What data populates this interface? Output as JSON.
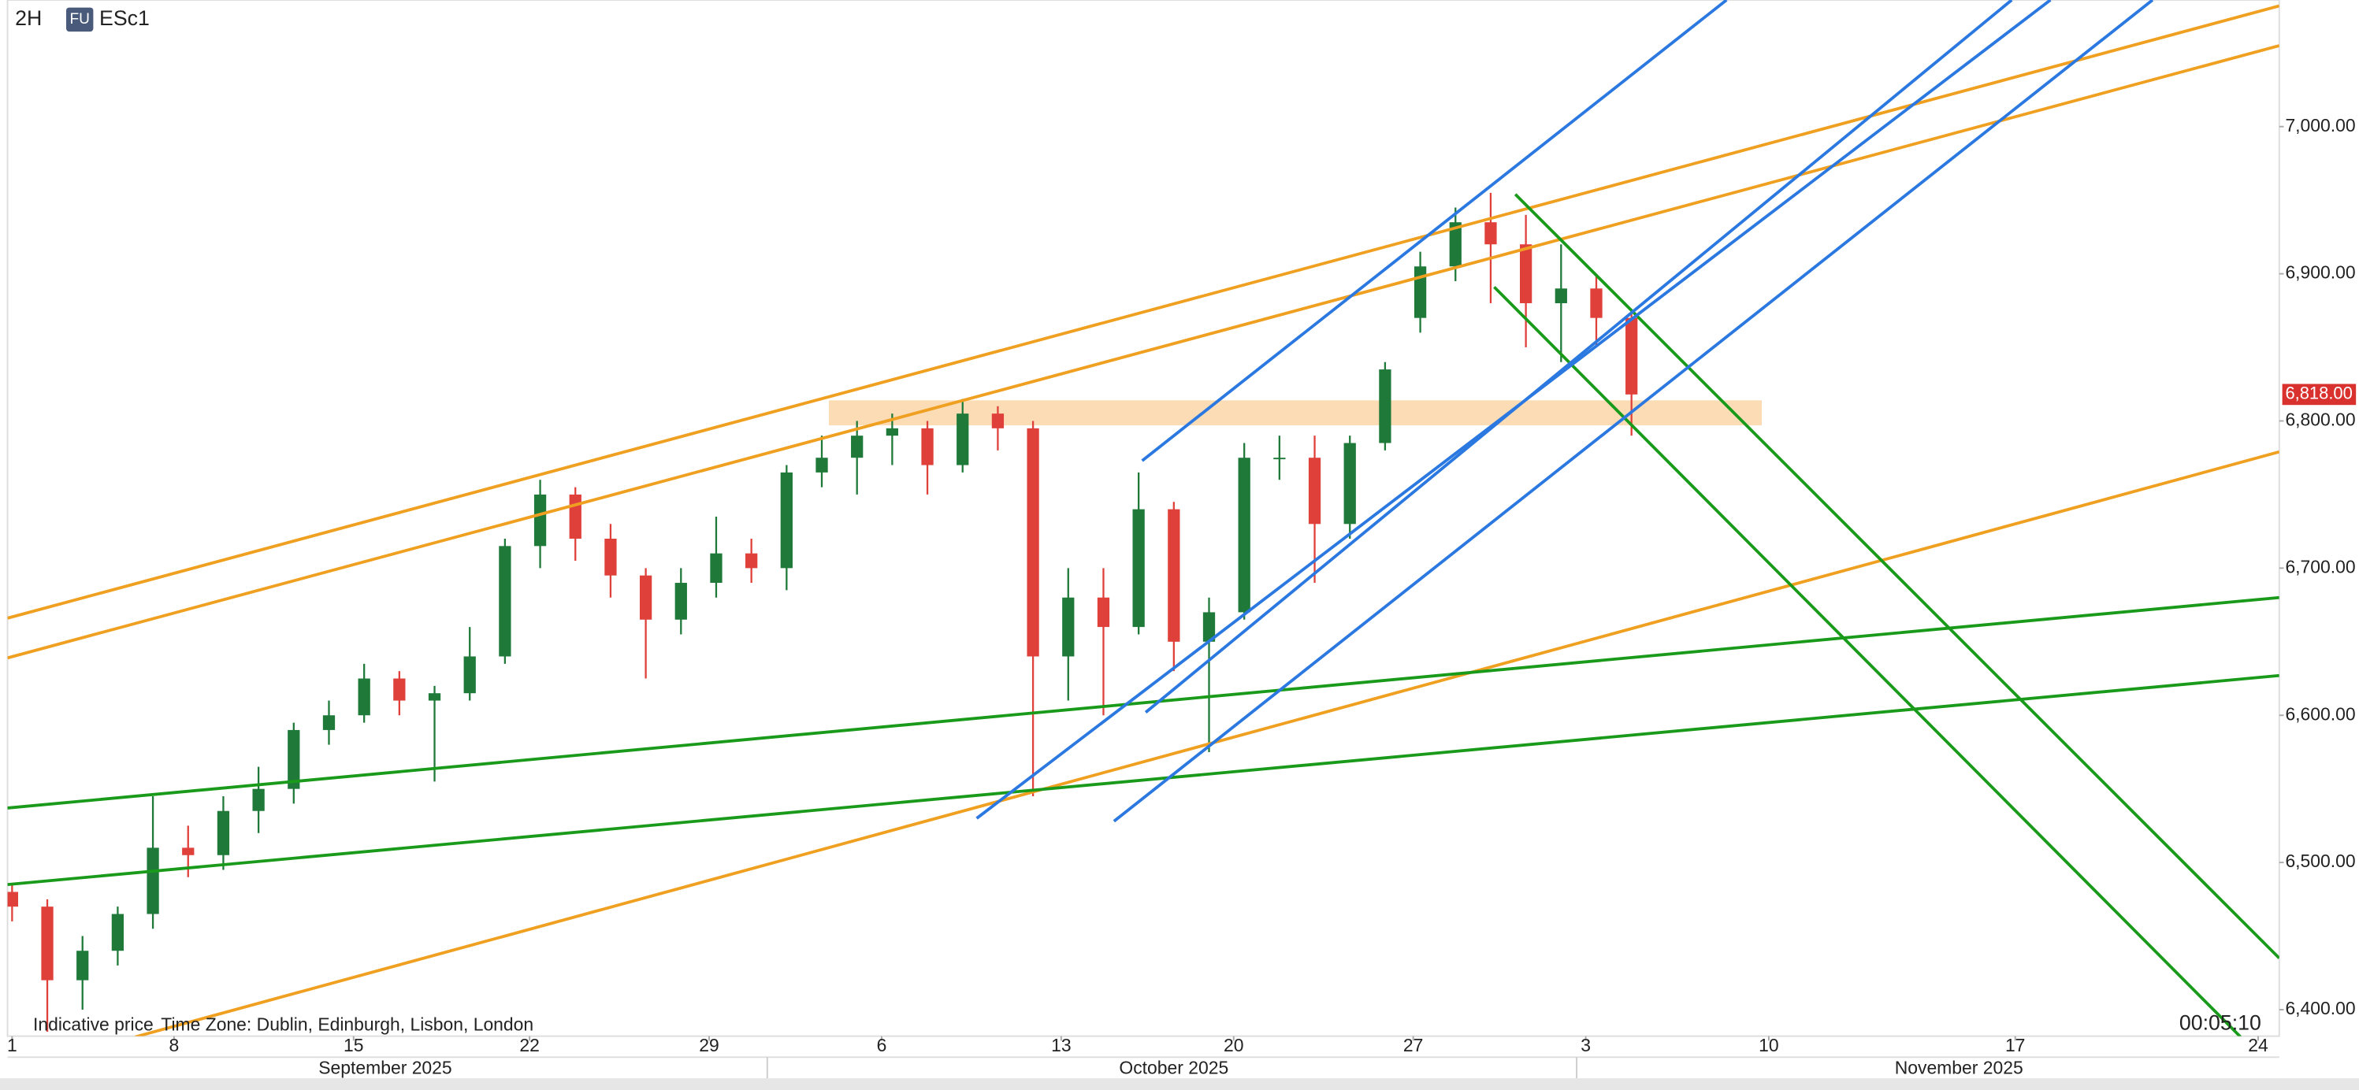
{
  "header": {
    "interval": "2H",
    "badge": "FU",
    "symbol": "ESc1"
  },
  "chart_data": {
    "type": "candlestick",
    "x": [
      0,
      1,
      2,
      3,
      4,
      5,
      6,
      7,
      8,
      9,
      10,
      11,
      12,
      13,
      14,
      15,
      16,
      17,
      18,
      19,
      20,
      21,
      22,
      23,
      24,
      25,
      26,
      27,
      28,
      29,
      30,
      31,
      32,
      33,
      34,
      35,
      36,
      37,
      38,
      39,
      40,
      41,
      42,
      43,
      44,
      45,
      46
    ],
    "open": [
      6480,
      6470,
      6420,
      6440,
      6465,
      6510,
      6505,
      6535,
      6550,
      6590,
      6600,
      6625,
      6610,
      6615,
      6640,
      6715,
      6750,
      6720,
      6695,
      6665,
      6690,
      6710,
      6700,
      6765,
      6775,
      6790,
      6795,
      6770,
      6805,
      6795,
      6640,
      6680,
      6660,
      6740,
      6650,
      6670,
      6775,
      6775,
      6730,
      6785,
      6870,
      6905,
      6935,
      6920,
      6880,
      6890,
      6870
    ],
    "high": [
      6485,
      6475,
      6450,
      6470,
      6545,
      6525,
      6545,
      6565,
      6595,
      6610,
      6635,
      6630,
      6620,
      6660,
      6720,
      6760,
      6755,
      6730,
      6700,
      6700,
      6735,
      6720,
      6770,
      6790,
      6800,
      6805,
      6800,
      6815,
      6810,
      6800,
      6700,
      6700,
      6765,
      6745,
      6680,
      6785,
      6790,
      6790,
      6790,
      6840,
      6915,
      6945,
      6955,
      6940,
      6920,
      6900,
      6875
    ],
    "low": [
      6460,
      6385,
      6400,
      6430,
      6455,
      6490,
      6495,
      6520,
      6540,
      6580,
      6595,
      6600,
      6555,
      6610,
      6635,
      6700,
      6705,
      6680,
      6625,
      6655,
      6680,
      6690,
      6685,
      6755,
      6750,
      6770,
      6750,
      6765,
      6780,
      6545,
      6610,
      6600,
      6655,
      6630,
      6575,
      6665,
      6760,
      6690,
      6720,
      6780,
      6860,
      6895,
      6880,
      6850,
      6840,
      6850,
      6790
    ],
    "close": [
      6470,
      6420,
      6440,
      6465,
      6510,
      6505,
      6535,
      6550,
      6590,
      6600,
      6625,
      6610,
      6615,
      6640,
      6715,
      6750,
      6720,
      6695,
      6665,
      6690,
      6710,
      6700,
      6765,
      6775,
      6790,
      6795,
      6770,
      6805,
      6795,
      6640,
      6680,
      6660,
      6740,
      6650,
      6670,
      6775,
      6775,
      6730,
      6785,
      6835,
      6905,
      6935,
      6920,
      6880,
      6890,
      6870,
      6818
    ],
    "up_color": "#1f7a3a",
    "down_color": "#e0403a",
    "xlim": [
      -0.13,
      64.4
    ],
    "xticks": [
      {
        "value": 0,
        "label": "1"
      },
      {
        "value": 4.6,
        "label": "8"
      },
      {
        "value": 9.7,
        "label": "15"
      },
      {
        "value": 14.7,
        "label": "22"
      },
      {
        "value": 19.8,
        "label": "29"
      },
      {
        "value": 24.7,
        "label": "6"
      },
      {
        "value": 29.8,
        "label": "13"
      },
      {
        "value": 34.7,
        "label": "20"
      },
      {
        "value": 39.8,
        "label": "27"
      },
      {
        "value": 44.7,
        "label": "3"
      },
      {
        "value": 49.9,
        "label": "10"
      },
      {
        "value": 56.9,
        "label": "17"
      },
      {
        "value": 63.8,
        "label": "24"
      }
    ],
    "months": [
      {
        "value": 10.6,
        "label": "September 2025"
      },
      {
        "value": 33,
        "label": "October 2025"
      },
      {
        "value": 55.3,
        "label": "November 2025"
      }
    ],
    "ylim": [
      6382,
      7086
    ],
    "yticks": [
      {
        "value": 6400,
        "label": "6,400.00"
      },
      {
        "value": 6500,
        "label": "6,500.00"
      },
      {
        "value": 6600,
        "label": "6,600.00"
      },
      {
        "value": 6700,
        "label": "6,700.00"
      },
      {
        "value": 6800,
        "label": "6,800.00"
      },
      {
        "value": 6900,
        "label": "6,900.00"
      },
      {
        "value": 7000,
        "label": "7,000.00"
      }
    ],
    "grid": false,
    "last_price": {
      "value": 6818,
      "label": "6,818.00"
    },
    "last_price_color": "#d9322e",
    "zones": [
      {
        "color": "#fcd6a8",
        "x": [
          23.2,
          49.7
        ],
        "y": [
          6814,
          6797
        ]
      }
    ],
    "drawings": [
      {
        "color": "#f0a020",
        "x": [
          -0.13,
          64.4
        ],
        "y": [
          6666,
          7082
        ]
      },
      {
        "color": "#f0a020",
        "x": [
          -0.13,
          64.4
        ],
        "y": [
          6639,
          7055
        ]
      },
      {
        "color": "#f0a020",
        "x": [
          3.5,
          64.4
        ],
        "y": [
          6381.5,
          6779
        ]
      },
      {
        "color": "#1a9a1a",
        "x": [
          -0.13,
          64.4
        ],
        "y": [
          6537,
          6680
        ]
      },
      {
        "color": "#1a9a1a",
        "x": [
          -0.13,
          64.4
        ],
        "y": [
          6485,
          6627
        ]
      },
      {
        "color": "#1a9a1a",
        "x": [
          42.1,
          63.3
        ],
        "y": [
          6891,
          6381.5
        ]
      },
      {
        "color": "#1a9a1a",
        "x": [
          42.7,
          64.4
        ],
        "y": [
          6954,
          6435
        ]
      },
      {
        "color": "#2a78e0",
        "x": [
          32.1,
          48.7
        ],
        "y": [
          6773,
          7086
        ]
      },
      {
        "color": "#2a78e0",
        "x": [
          32.2,
          56.8
        ],
        "y": [
          6602,
          7086
        ]
      },
      {
        "color": "#2a78e0",
        "x": [
          27.4,
          57.9
        ],
        "y": [
          6530,
          7086
        ]
      },
      {
        "color": "#2a78e0",
        "x": [
          31.3,
          60.8
        ],
        "y": [
          6528,
          7086
        ]
      }
    ]
  },
  "footer": {
    "note": "Indicative price",
    "timezone": "Time Zone: Dublin, Edinburgh, Lisbon, London",
    "countdown": "00:05:10"
  }
}
